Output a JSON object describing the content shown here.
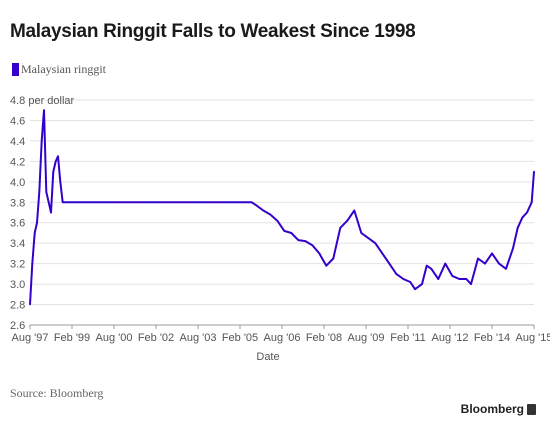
{
  "chart_data": {
    "type": "line",
    "title": "Malaysian Ringgit Falls to Weakest Since 1998",
    "legend": [
      "Malaysian ringgit"
    ],
    "ylabel": "per dollar",
    "xlabel": "Date",
    "ylim": [
      2.6,
      4.8
    ],
    "yticks": [
      2.6,
      2.8,
      3.0,
      3.2,
      3.4,
      3.6,
      3.8,
      4.0,
      4.2,
      4.4,
      4.6,
      4.8
    ],
    "xlim": [
      "1997-08",
      "2015-08"
    ],
    "xticks": [
      "Aug '97",
      "Feb '99",
      "Aug '00",
      "Feb '02",
      "Aug '03",
      "Feb '05",
      "Aug '06",
      "Feb '08",
      "Aug '09",
      "Feb '11",
      "Aug '12",
      "Feb '14",
      "Aug '15"
    ],
    "grid": true,
    "series": [
      {
        "name": "Malaysian ringgit",
        "color": "#3300cc",
        "x": [
          "1997-08",
          "1997-09",
          "1997-10",
          "1997-11",
          "1997-12",
          "1998-01",
          "1998-02",
          "1998-03",
          "1998-04",
          "1998-05",
          "1998-06",
          "1998-07",
          "1998-08",
          "1998-09",
          "1998-10",
          "1998-12",
          "1999-06",
          "2000-06",
          "2002-01",
          "2003-06",
          "2005-01",
          "2005-07",
          "2005-09",
          "2005-12",
          "2006-03",
          "2006-06",
          "2006-09",
          "2006-12",
          "2007-03",
          "2007-06",
          "2007-09",
          "2007-12",
          "2008-03",
          "2008-06",
          "2008-09",
          "2008-12",
          "2009-03",
          "2009-06",
          "2009-09",
          "2009-12",
          "2010-03",
          "2010-06",
          "2010-09",
          "2010-12",
          "2011-03",
          "2011-05",
          "2011-08",
          "2011-10",
          "2011-12",
          "2012-03",
          "2012-06",
          "2012-09",
          "2012-12",
          "2013-03",
          "2013-05",
          "2013-08",
          "2013-11",
          "2014-02",
          "2014-05",
          "2014-08",
          "2014-11",
          "2015-01",
          "2015-03",
          "2015-05",
          "2015-07",
          "2015-08"
        ],
        "values": [
          2.8,
          3.2,
          3.5,
          3.6,
          3.9,
          4.4,
          4.7,
          3.9,
          3.8,
          3.7,
          4.1,
          4.2,
          4.25,
          4.0,
          3.8,
          3.8,
          3.8,
          3.8,
          3.8,
          3.8,
          3.8,
          3.8,
          3.77,
          3.72,
          3.68,
          3.62,
          3.52,
          3.5,
          3.43,
          3.42,
          3.38,
          3.3,
          3.18,
          3.25,
          3.55,
          3.62,
          3.72,
          3.5,
          3.45,
          3.4,
          3.3,
          3.2,
          3.1,
          3.05,
          3.02,
          2.95,
          3.0,
          3.18,
          3.15,
          3.05,
          3.2,
          3.08,
          3.05,
          3.05,
          3.0,
          3.25,
          3.2,
          3.3,
          3.2,
          3.15,
          3.35,
          3.55,
          3.65,
          3.7,
          3.8,
          4.1
        ]
      }
    ]
  },
  "source": "Source: Bloomberg",
  "brand": "Bloomberg"
}
